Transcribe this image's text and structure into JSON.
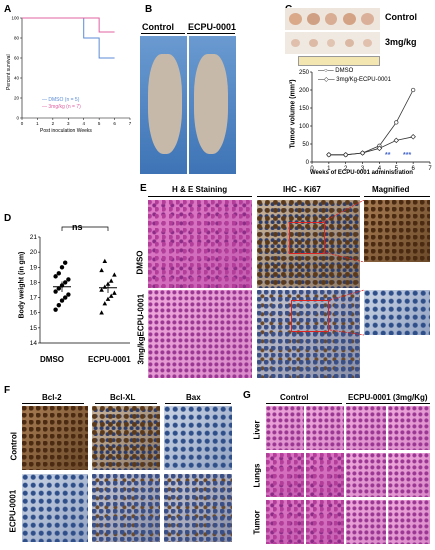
{
  "panels": {
    "A": "A",
    "B": "B",
    "C": "C",
    "D": "D",
    "E": "E",
    "F": "F",
    "G": "G"
  },
  "panelA": {
    "ylabel": "Percent survival",
    "xlabel": "Post inoculation Weeks",
    "legend": [
      "DMSO (n = 5)",
      "3mg/kg (n = 7)"
    ],
    "colors": {
      "dmso": "#5b8bd4",
      "treated": "#e060a0"
    }
  },
  "panelB": {
    "labels": [
      "Control",
      "ECPU-0001"
    ]
  },
  "panelC": {
    "tumor_labels": [
      "Control",
      "3mg/kg"
    ],
    "ylabel": "Tumor volume (mm³)",
    "xlabel": "Weeks of ECPU-0001 administration",
    "legend": [
      "DMSO",
      "3mg/Kg-ECPU-0001"
    ],
    "sig": [
      "**",
      "***"
    ]
  },
  "panelD": {
    "ylabel": "Body weight (in gm)",
    "categories": [
      "DMSO",
      "ECPU-0001"
    ],
    "ns": "ns"
  },
  "panelE": {
    "headers": [
      "H & E Staining",
      "IHC - Ki67",
      "Magnified"
    ],
    "rows": [
      "DMSO",
      "3mg/kgECPU-0001"
    ]
  },
  "panelF": {
    "headers": [
      "Bcl-2",
      "Bcl-XL",
      "Bax"
    ],
    "rows": [
      "Control",
      "ECPU-0001"
    ]
  },
  "panelG": {
    "headers": [
      "Control",
      "ECPU-0001 (3mg/Kg)"
    ],
    "rows": [
      "Liver",
      "Lungs",
      "Tumor"
    ]
  },
  "chart_data": [
    {
      "type": "line",
      "panel": "A",
      "xlabel": "Post inoculation Weeks",
      "ylabel": "Percent survival",
      "xlim": [
        0,
        7
      ],
      "ylim": [
        0,
        100
      ],
      "x_ticks": [
        0,
        1,
        2,
        3,
        4,
        5,
        6,
        7
      ],
      "y_ticks": [
        0,
        20,
        40,
        60,
        80,
        100
      ],
      "series": [
        {
          "name": "DMSO (n = 5)",
          "x": [
            0,
            4,
            4,
            5,
            5,
            6
          ],
          "y": [
            100,
            100,
            80,
            80,
            60,
            60
          ]
        },
        {
          "name": "3mg/kg (n = 7)",
          "x": [
            0,
            5,
            5,
            6
          ],
          "y": [
            100,
            100,
            86,
            86
          ]
        }
      ]
    },
    {
      "type": "line",
      "panel": "C",
      "xlabel": "Weeks of ECPU-0001 administration",
      "ylabel": "Tumor volume (mm³)",
      "xlim": [
        0,
        7
      ],
      "ylim": [
        0,
        250
      ],
      "x_ticks": [
        0,
        1,
        2,
        3,
        4,
        5,
        6,
        7
      ],
      "y_ticks": [
        0,
        50,
        100,
        150,
        200,
        250
      ],
      "series": [
        {
          "name": "DMSO",
          "x": [
            1,
            2,
            3,
            4,
            5,
            6
          ],
          "y": [
            20,
            20,
            25,
            45,
            110,
            200
          ]
        },
        {
          "name": "3mg/Kg-ECPU-0001",
          "x": [
            1,
            2,
            3,
            4,
            5,
            6
          ],
          "y": [
            20,
            20,
            25,
            38,
            60,
            70
          ]
        }
      ]
    },
    {
      "type": "scatter",
      "panel": "D",
      "ylabel": "Body weight (in gm)",
      "categories": [
        "DMSO",
        "ECPU-0001"
      ],
      "ylim": [
        14,
        21
      ],
      "y_ticks": [
        14,
        15,
        16,
        17,
        18,
        19,
        20,
        21
      ],
      "series": [
        {
          "name": "DMSO",
          "values": [
            16.2,
            16.5,
            16.8,
            17.0,
            17.2,
            17.4,
            17.6,
            17.8,
            18.0,
            18.2,
            18.4,
            18.6,
            19.0,
            19.3
          ]
        },
        {
          "name": "ECPU-0001",
          "values": [
            16.0,
            16.6,
            16.9,
            17.1,
            17.3,
            17.5,
            17.7,
            17.9,
            18.1,
            18.5,
            18.8,
            19.4
          ]
        }
      ]
    }
  ]
}
